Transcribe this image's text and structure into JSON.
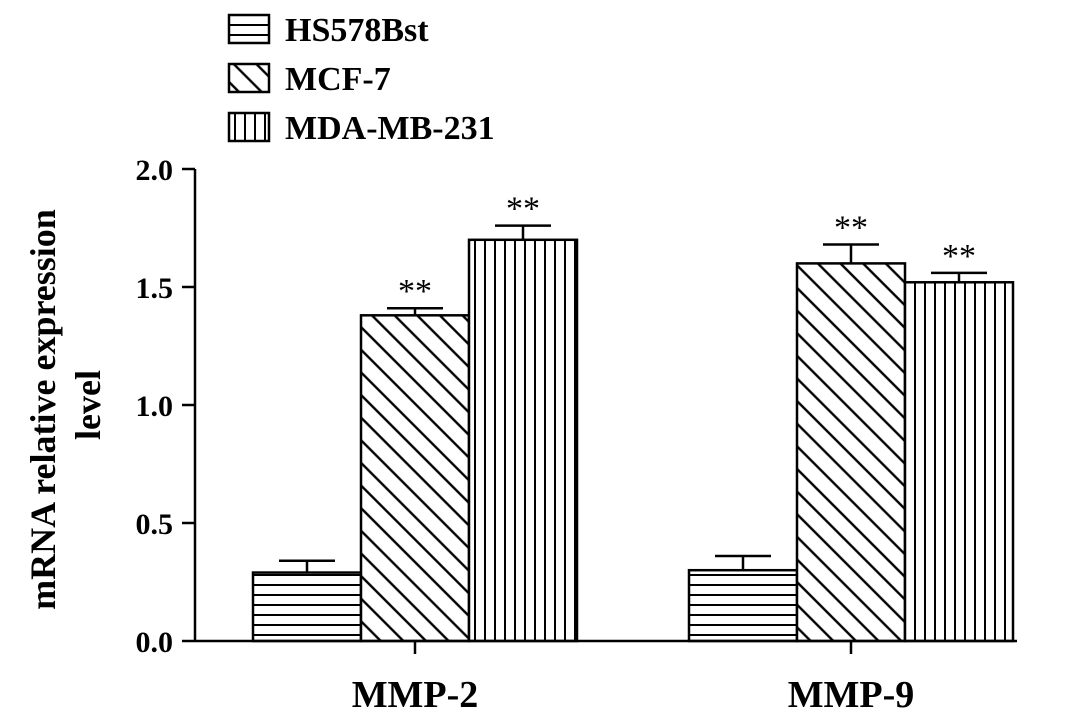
{
  "chart_data": {
    "type": "bar",
    "categories": [
      "MMP-2",
      "MMP-9"
    ],
    "series": [
      {
        "name": "HS578Bst",
        "pattern": "horizontal-lines",
        "values": [
          0.29,
          0.3
        ],
        "errors": [
          0.05,
          0.06
        ],
        "annotations": [
          "",
          ""
        ]
      },
      {
        "name": "MCF-7",
        "pattern": "diagonal-lines",
        "values": [
          1.38,
          1.6
        ],
        "errors": [
          0.03,
          0.08
        ],
        "annotations": [
          "**",
          "**"
        ]
      },
      {
        "name": "MDA-MB-231",
        "pattern": "vertical-lines",
        "values": [
          1.7,
          1.52
        ],
        "errors": [
          0.06,
          0.04
        ],
        "annotations": [
          "**",
          "**"
        ]
      }
    ],
    "xlabel": "",
    "ylabel_lines": [
      "mRNA relative expression",
      "level"
    ],
    "ylim": [
      0,
      2.0
    ],
    "yticks": [
      "0.0",
      "0.5",
      "1.0",
      "1.5",
      "2.0"
    ],
    "grid": false,
    "legend_position": "top-left"
  }
}
